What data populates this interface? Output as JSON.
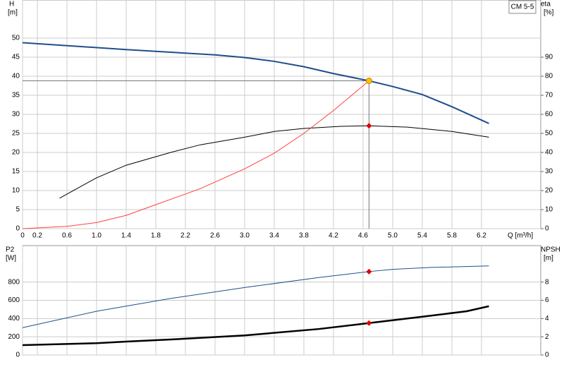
{
  "chart_data": [
    {
      "type": "line",
      "title": "CM 5-5",
      "ylabel": "H",
      "yunit": "[m]",
      "y2label": "eta",
      "y2unit": "[%]",
      "xlabel": "Q [m³/h]",
      "xlim": [
        0,
        7
      ],
      "ylim": [
        0,
        60
      ],
      "y2lim": [
        0,
        120
      ],
      "xticks": [
        0,
        0.2,
        0.6,
        {
          "value": 1,
          "label": "1.0"
        },
        1.4,
        1.8,
        2.2,
        2.6,
        {
          "value": 3,
          "label": "3.0"
        },
        3.4,
        3.8,
        4.2,
        4.6,
        {
          "value": 5,
          "label": "5.0"
        },
        5.4,
        5.8,
        6.2
      ],
      "yticks": [
        0,
        5,
        10,
        15,
        20,
        25,
        30,
        35,
        40,
        45,
        50
      ],
      "y2ticks": [
        0,
        10,
        20,
        30,
        40,
        50,
        60,
        70,
        80,
        90
      ],
      "grid": true,
      "crosshair": true,
      "series": [
        {
          "color": "#1f4e8c",
          "width": 2,
          "axis": "y",
          "x": [
            0,
            1.4,
            2.0,
            2.6,
            3.0,
            3.4,
            3.8,
            4.2,
            4.68,
            5.0,
            5.4,
            5.8,
            6.3
          ],
          "values": [
            48.8,
            47,
            46.3,
            45.6,
            44.9,
            43.9,
            42.5,
            40.7,
            38.8,
            37.3,
            35.2,
            32.0,
            27.6
          ]
        },
        {
          "color": "#000000",
          "width": 1,
          "axis": "y2",
          "x": [
            0.5,
            1.0,
            1.4,
            2.0,
            2.4,
            3.0,
            3.4,
            3.8,
            4.3,
            4.68,
            5.2,
            5.8,
            6.3
          ],
          "values": [
            16,
            26.7,
            33.3,
            40,
            44,
            48,
            51,
            52.6,
            53.7,
            54,
            53.3,
            51,
            48
          ]
        },
        {
          "color": "#ff4040",
          "width": 1,
          "axis": "y",
          "x": [
            0,
            0.6,
            1.0,
            1.4,
            1.8,
            2.4,
            3.0,
            3.4,
            3.8,
            4.2,
            4.68
          ],
          "values": [
            0,
            0.6,
            1.6,
            3.5,
            6.3,
            10.5,
            15.7,
            19.8,
            25,
            31,
            38.8
          ]
        }
      ],
      "markers": [
        {
          "x": 4.68,
          "value": 38.8,
          "axis": "y",
          "color": "#ffc000",
          "shape": "circle"
        },
        {
          "x": 4.68,
          "value": 54,
          "axis": "y2",
          "color": "#e00000",
          "shape": "diamond"
        }
      ]
    },
    {
      "type": "line",
      "ylabel": "P2",
      "yunit": "[W]",
      "y2label": "NPSH",
      "y2unit": "[m]",
      "xlim": [
        0,
        7
      ],
      "ylim": [
        0,
        1200
      ],
      "y2lim": [
        0,
        12
      ],
      "yticks": [
        0,
        200,
        400,
        600,
        800
      ],
      "y2ticks": [
        0,
        2,
        4,
        6,
        8
      ],
      "grid": true,
      "series": [
        {
          "color": "#000000",
          "width": 2.5,
          "axis": "y",
          "x": [
            0,
            1.0,
            1.4,
            2.0,
            3.0,
            4.0,
            4.68,
            5.4,
            6.0,
            6.3
          ],
          "values": [
            108,
            130,
            147,
            170,
            215,
            285,
            350,
            420,
            480,
            535
          ]
        },
        {
          "color": "#1f4e8c",
          "width": 1,
          "axis": "y2",
          "x": [
            0,
            1.0,
            2.0,
            3.0,
            4.0,
            4.68,
            5.0,
            5.5,
            6.3
          ],
          "values": [
            3.0,
            4.8,
            6.2,
            7.4,
            8.5,
            9.15,
            9.4,
            9.6,
            9.77
          ]
        }
      ],
      "markers": [
        {
          "x": 4.68,
          "value": 350,
          "axis": "y",
          "color": "#e00000",
          "shape": "diamond"
        },
        {
          "x": 4.68,
          "value": 9.15,
          "axis": "y2",
          "color": "#e00000",
          "shape": "diamond"
        }
      ]
    }
  ]
}
